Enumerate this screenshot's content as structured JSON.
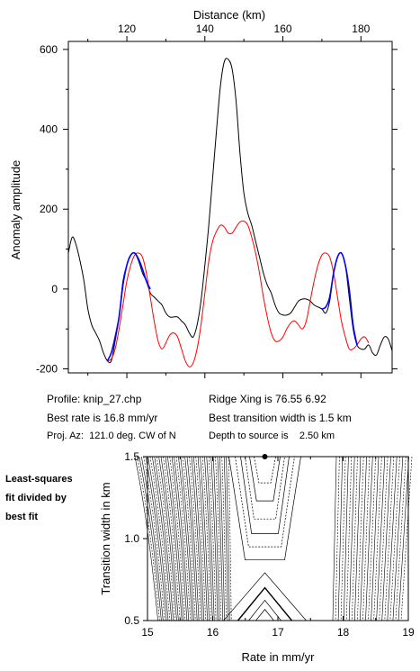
{
  "chart_data": [
    {
      "type": "line",
      "xlabel": "Distance (km)",
      "ylabel": "Anomaly amplitude",
      "xlim": [
        105,
        188
      ],
      "ylim": [
        -210,
        620
      ],
      "x_ticks": [
        120,
        140,
        160,
        180
      ],
      "y_ticks": [
        -200,
        0,
        200,
        400,
        600
      ],
      "series": [
        {
          "color": "#000000",
          "points": [
            [
              105,
              90
            ],
            [
              106,
              130
            ],
            [
              107,
              110
            ],
            [
              108,
              70
            ],
            [
              109,
              20
            ],
            [
              110,
              -50
            ],
            [
              111,
              -90
            ],
            [
              112,
              -110
            ],
            [
              113,
              -130
            ],
            [
              114,
              -160
            ],
            [
              115,
              -180
            ],
            [
              116,
              -180
            ],
            [
              117,
              -130
            ],
            [
              118,
              -70
            ],
            [
              119,
              20
            ],
            [
              120,
              60
            ],
            [
              121,
              85
            ],
            [
              122,
              90
            ],
            [
              123,
              70
            ],
            [
              124,
              40
            ],
            [
              125,
              20
            ],
            [
              126,
              -10
            ],
            [
              127,
              -20
            ],
            [
              128,
              -30
            ],
            [
              129,
              -40
            ],
            [
              130,
              -60
            ],
            [
              131,
              -70
            ],
            [
              132,
              -70
            ],
            [
              133,
              -70
            ],
            [
              134,
              -80
            ],
            [
              135,
              -90
            ],
            [
              136,
              -110
            ],
            [
              137,
              -120
            ],
            [
              138,
              -90
            ],
            [
              139,
              -30
            ],
            [
              140,
              60
            ],
            [
              141,
              160
            ],
            [
              142,
              280
            ],
            [
              143,
              400
            ],
            [
              144,
              510
            ],
            [
              145,
              570
            ],
            [
              146,
              575
            ],
            [
              147,
              550
            ],
            [
              148,
              470
            ],
            [
              149,
              340
            ],
            [
              150,
              240
            ],
            [
              151,
              190
            ],
            [
              152,
              160
            ],
            [
              153,
              120
            ],
            [
              154,
              80
            ],
            [
              155,
              40
            ],
            [
              156,
              10
            ],
            [
              157,
              -10
            ],
            [
              158,
              -40
            ],
            [
              159,
              -60
            ],
            [
              160,
              -65
            ],
            [
              161,
              -65
            ],
            [
              162,
              -60
            ],
            [
              163,
              -45
            ],
            [
              164,
              -30
            ],
            [
              165,
              -25
            ],
            [
              166,
              -25
            ],
            [
              167,
              -30
            ],
            [
              168,
              -40
            ],
            [
              169,
              -45
            ],
            [
              170,
              -50
            ],
            [
              171,
              -60
            ],
            [
              172,
              -30
            ],
            [
              173,
              40
            ],
            [
              174,
              80
            ],
            [
              175,
              90
            ],
            [
              176,
              60
            ],
            [
              177,
              -20
            ],
            [
              178,
              -100
            ],
            [
              179,
              -140
            ],
            [
              180,
              -150
            ],
            [
              181,
              -150
            ],
            [
              182,
              -140
            ],
            [
              183,
              -160
            ],
            [
              184,
              -165
            ],
            [
              185,
              -140
            ],
            [
              186,
              -120
            ],
            [
              187,
              -125
            ],
            [
              188,
              -155
            ]
          ]
        },
        {
          "color": "#ff0000",
          "points": [
            [
              115,
              -180
            ],
            [
              116,
              -175
            ],
            [
              117,
              -150
            ],
            [
              118,
              -100
            ],
            [
              119,
              -40
            ],
            [
              120,
              20
            ],
            [
              121,
              60
            ],
            [
              122,
              85
            ],
            [
              123,
              90
            ],
            [
              124,
              80
            ],
            [
              125,
              40
            ],
            [
              126,
              -20
            ],
            [
              127,
              -80
            ],
            [
              128,
              -130
            ],
            [
              129,
              -150
            ],
            [
              130,
              -135
            ],
            [
              131,
              -115
            ],
            [
              132,
              -110
            ],
            [
              133,
              -120
            ],
            [
              134,
              -150
            ],
            [
              135,
              -180
            ],
            [
              136,
              -195
            ],
            [
              137,
              -185
            ],
            [
              138,
              -150
            ],
            [
              139,
              -90
            ],
            [
              140,
              -10
            ],
            [
              141,
              70
            ],
            [
              142,
              120
            ],
            [
              143,
              145
            ],
            [
              144,
              160
            ],
            [
              145,
              155
            ],
            [
              146,
              140
            ],
            [
              147,
              140
            ],
            [
              148,
              155
            ],
            [
              149,
              168
            ],
            [
              150,
              170
            ],
            [
              151,
              160
            ],
            [
              152,
              130
            ],
            [
              153,
              90
            ],
            [
              154,
              40
            ],
            [
              155,
              -20
            ],
            [
              156,
              -70
            ],
            [
              157,
              -110
            ],
            [
              158,
              -130
            ],
            [
              159,
              -130
            ],
            [
              160,
              -120
            ],
            [
              161,
              -100
            ],
            [
              162,
              -85
            ],
            [
              163,
              -80
            ],
            [
              164,
              -90
            ],
            [
              165,
              -100
            ],
            [
              166,
              -80
            ],
            [
              167,
              -30
            ],
            [
              168,
              20
            ],
            [
              169,
              60
            ],
            [
              170,
              85
            ],
            [
              171,
              90
            ],
            [
              172,
              80
            ],
            [
              173,
              40
            ],
            [
              174,
              -20
            ],
            [
              175,
              -80
            ],
            [
              176,
              -120
            ],
            [
              177,
              -150
            ],
            [
              178,
              -150
            ],
            [
              179,
              -140
            ],
            [
              180,
              -125
            ],
            [
              181,
              -120
            ],
            [
              182,
              -135
            ]
          ]
        },
        {
          "color": "#0000ff",
          "points": [
            [
              115,
              -180
            ],
            [
              116,
              -160
            ],
            [
              117,
              -120
            ],
            [
              118,
              -70
            ],
            [
              119,
              10
            ],
            [
              120,
              60
            ],
            [
              121,
              85
            ],
            [
              122,
              90
            ],
            [
              123,
              75
            ],
            [
              124,
              50
            ],
            [
              125,
              20
            ],
            [
              126,
              0
            ]
          ]
        },
        {
          "color": "#0000ff",
          "points": [
            [
              170,
              -50
            ],
            [
              171,
              -45
            ],
            [
              172,
              -20
            ],
            [
              173,
              40
            ],
            [
              174,
              80
            ],
            [
              175,
              90
            ],
            [
              176,
              60
            ],
            [
              177,
              0
            ],
            [
              178,
              -90
            ],
            [
              179,
              -140
            ]
          ]
        }
      ]
    },
    {
      "type": "contour",
      "xlabel": "Rate in mm/yr",
      "ylabel": "Transition width in km",
      "xlim": [
        15,
        19
      ],
      "ylim": [
        0.5,
        1.5
      ],
      "x_ticks": [
        15,
        16,
        17,
        18,
        19
      ],
      "y_ticks": [
        0.5,
        1.0,
        1.5
      ],
      "best_fit": [
        16.8,
        1.5
      ]
    }
  ],
  "info": {
    "profile": "Profile: knip_27.chp",
    "best_rate": "Best rate is 16.8 mm/yr",
    "proj_az": "Proj. Az:  121.0 deg. CW of N",
    "ridge_xing": "Ridge Xing is 76.55 6.92",
    "best_transition": "Best transition width is 1.5 km",
    "depth": "Depth to source is    2.50 km"
  },
  "side_label": [
    "Least-squares",
    "fit divided by",
    "best fit"
  ]
}
